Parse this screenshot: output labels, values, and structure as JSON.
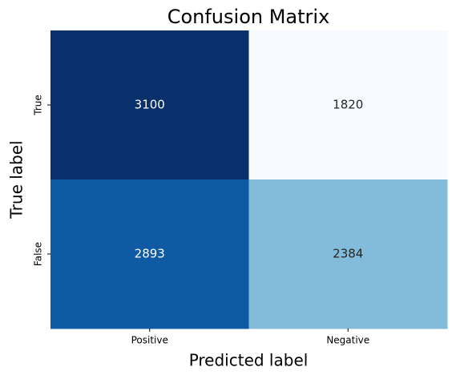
{
  "chart_data": {
    "type": "heatmap",
    "title": "Confusion Matrix",
    "x_label": "Predicted label",
    "y_label": "True label",
    "x_categories": [
      "Positive",
      "Negative"
    ],
    "y_categories": [
      "True",
      "False"
    ],
    "values": [
      [
        3100,
        1820
      ],
      [
        2893,
        2384
      ]
    ],
    "colormap": [
      "#f7fbff",
      "#deebf7",
      "#c6dbef",
      "#9ecae1",
      "#6baed6",
      "#4292c6",
      "#2171b5",
      "#08519c",
      "#08306b"
    ],
    "colorbar": false
  }
}
